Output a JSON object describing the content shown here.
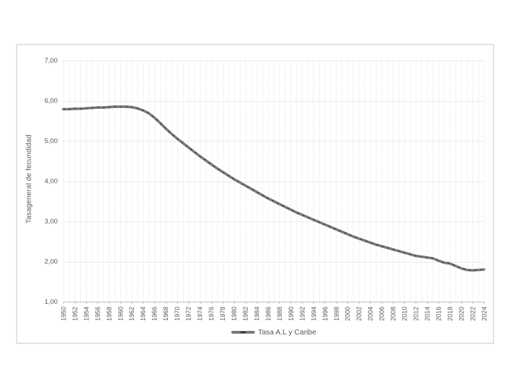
{
  "chart": {
    "background": "#ffffff",
    "border_color": "#d9d9d9",
    "text_color": "#595959",
    "colors": {
      "line": "#7a7a7a",
      "marker_dash": "#3d3d3d",
      "grid_major": "#c8c8c8",
      "grid_minor": "#e0e0e0",
      "axis": "#bfbfbf"
    }
  },
  "chart_data": {
    "type": "line",
    "title": "",
    "xlabel": "",
    "ylabel": "Tasageneral de fecundidad",
    "ylim": [
      1,
      7
    ],
    "y_ticks": [
      1,
      2,
      3,
      4,
      5,
      6,
      7
    ],
    "y_tick_labels": [
      "1,00",
      "2,00",
      "3,00",
      "4,00",
      "5,00",
      "6,00",
      "7,00"
    ],
    "x_label_step": 2,
    "grid": true,
    "legend_position": "bottom",
    "x": [
      1950,
      1951,
      1952,
      1953,
      1954,
      1955,
      1956,
      1957,
      1958,
      1959,
      1960,
      1961,
      1962,
      1963,
      1964,
      1965,
      1966,
      1967,
      1968,
      1969,
      1970,
      1971,
      1972,
      1973,
      1974,
      1975,
      1976,
      1977,
      1978,
      1979,
      1980,
      1981,
      1982,
      1983,
      1984,
      1985,
      1986,
      1987,
      1988,
      1989,
      1990,
      1991,
      1992,
      1993,
      1994,
      1995,
      1996,
      1997,
      1998,
      1999,
      2000,
      2001,
      2002,
      2003,
      2004,
      2005,
      2006,
      2007,
      2008,
      2009,
      2010,
      2011,
      2012,
      2013,
      2014,
      2015,
      2016,
      2017,
      2018,
      2019,
      2020,
      2021,
      2022,
      2023,
      2024
    ],
    "series": [
      {
        "name": "Tasa A.L y Caribe",
        "values": [
          5.79,
          5.79,
          5.8,
          5.8,
          5.81,
          5.82,
          5.83,
          5.83,
          5.84,
          5.85,
          5.85,
          5.85,
          5.84,
          5.81,
          5.76,
          5.69,
          5.58,
          5.45,
          5.31,
          5.18,
          5.06,
          4.95,
          4.84,
          4.73,
          4.62,
          4.52,
          4.42,
          4.32,
          4.23,
          4.14,
          4.05,
          3.97,
          3.89,
          3.81,
          3.73,
          3.65,
          3.57,
          3.5,
          3.43,
          3.36,
          3.29,
          3.22,
          3.16,
          3.1,
          3.04,
          2.98,
          2.92,
          2.86,
          2.8,
          2.74,
          2.68,
          2.62,
          2.57,
          2.52,
          2.47,
          2.42,
          2.38,
          2.34,
          2.3,
          2.26,
          2.22,
          2.18,
          2.14,
          2.12,
          2.1,
          2.08,
          2.02,
          1.97,
          1.95,
          1.89,
          1.83,
          1.79,
          1.78,
          1.79,
          1.8
        ]
      }
    ]
  }
}
